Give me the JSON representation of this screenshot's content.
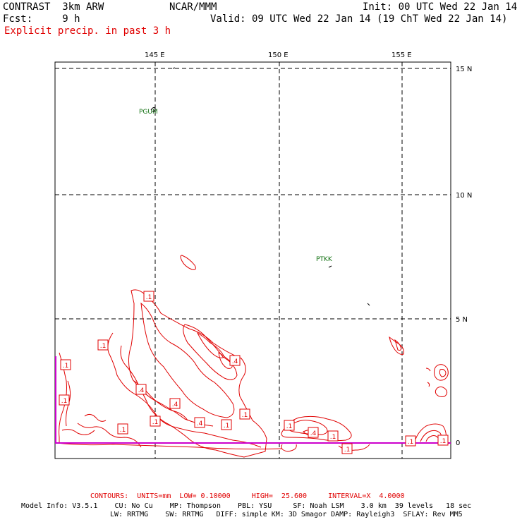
{
  "header": {
    "model": "CONTRAST  3km ARW",
    "org": "NCAR/MMM",
    "init": "Init: 00 UTC Wed 22 Jan 14",
    "fcst": "Fcst:     9 h",
    "valid": "Valid: 09 UTC Wed 22 Jan 14 (19 ChT Wed 22 Jan 14)",
    "field": "Explicit precip. in past 3 h"
  },
  "map": {
    "lon_labels": [
      "145 E",
      "150 E",
      "155 E"
    ],
    "lat_labels": [
      "15 N",
      "10 N",
      "5 N",
      "0"
    ],
    "stations": [
      {
        "id": "PGUM"
      },
      {
        "id": "PTKK"
      }
    ],
    "contour_labels": [
      ".1",
      ".1",
      ".1",
      ".4",
      ".1",
      ".4",
      ".4",
      ".1",
      ".1",
      ".4",
      ".1",
      ".1",
      ".1",
      ".4",
      ".1",
      ".1",
      ".1",
      ".1"
    ],
    "colors": {
      "contour": "#e00000",
      "grid": "#000000",
      "boundary": "#cc00cc",
      "station": "#107010"
    }
  },
  "footer": {
    "contours": "CONTOURS:  UNITS=mm  LOW= 0.10000     HIGH=  25.600     INTERVAL=X  4.0000",
    "model_info": "Model Info: V3.5.1    CU: No Cu    MP: Thompson    PBL: YSU     SF: Noah LSM    3.0 km  39 levels   18 sec",
    "model_info2": "LW: RRTMG    SW: RRTMG   DIFF: simple KM: 3D Smagor DAMP: Rayleigh3  SFLAY: Rev MM5"
  }
}
